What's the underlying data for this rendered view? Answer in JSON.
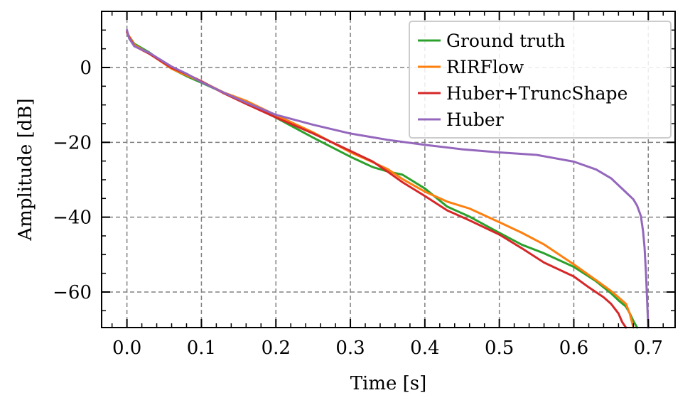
{
  "chart_data": {
    "type": "line",
    "title": "",
    "xlabel": "Time [s]",
    "ylabel": "Amplitude [dB]",
    "xlim": [
      -0.034,
      0.736
    ],
    "ylim": [
      -69.5,
      15
    ],
    "xticks": [
      0.0,
      0.1,
      0.2,
      0.3,
      0.4,
      0.5,
      0.6,
      0.7
    ],
    "xtick_labels": [
      "0.0",
      "0.1",
      "0.2",
      "0.3",
      "0.4",
      "0.5",
      "0.6",
      "0.7"
    ],
    "yticks": [
      0,
      -20,
      -40,
      -60
    ],
    "ytick_labels": [
      "0",
      "−20",
      "−40",
      "−60"
    ],
    "grid": true,
    "legend_position": "top-right",
    "series": [
      {
        "name": "Ground truth",
        "color": "#2ca02c",
        "x": [
          0.0,
          0.003,
          0.01,
          0.03,
          0.06,
          0.08,
          0.1,
          0.13,
          0.16,
          0.2,
          0.25,
          0.3,
          0.33,
          0.35,
          0.37,
          0.4,
          0.43,
          0.46,
          0.5,
          0.53,
          0.56,
          0.6,
          0.63,
          0.65,
          0.66,
          0.67,
          0.675,
          0.68,
          0.685
        ],
        "y": [
          9.5,
          8,
          6,
          4,
          0,
          -2,
          -4,
          -7,
          -9.5,
          -13.5,
          -18.5,
          -23.5,
          -26.5,
          -28,
          -29,
          -32.5,
          -37,
          -39.5,
          -44,
          -47.5,
          -50,
          -53.5,
          -57,
          -60,
          -62,
          -64,
          -66,
          -68,
          -69.5
        ]
      },
      {
        "name": "RIRFlow",
        "color": "#ff7f0e",
        "x": [
          0.0,
          0.003,
          0.01,
          0.03,
          0.06,
          0.08,
          0.1,
          0.13,
          0.16,
          0.2,
          0.25,
          0.3,
          0.33,
          0.35,
          0.37,
          0.4,
          0.43,
          0.46,
          0.5,
          0.53,
          0.56,
          0.6,
          0.63,
          0.65,
          0.66,
          0.67,
          0.675,
          0.68
        ],
        "y": [
          9.5,
          8,
          6,
          4,
          0,
          -2,
          -4,
          -7,
          -9,
          -12.5,
          -17,
          -22.5,
          -25.5,
          -27.5,
          -30,
          -33,
          -35.5,
          -37.5,
          -41.5,
          -44.5,
          -47.5,
          -52.5,
          -56.5,
          -59.5,
          -61.5,
          -63.5,
          -66,
          -69.5
        ]
      },
      {
        "name": "Huber+TruncShape",
        "color": "#d62728",
        "x": [
          0.0,
          0.003,
          0.01,
          0.03,
          0.06,
          0.08,
          0.1,
          0.13,
          0.16,
          0.2,
          0.25,
          0.3,
          0.33,
          0.35,
          0.37,
          0.4,
          0.43,
          0.46,
          0.5,
          0.53,
          0.56,
          0.6,
          0.62,
          0.64,
          0.65,
          0.66,
          0.665,
          0.67
        ],
        "y": [
          9.5,
          8,
          6,
          4,
          0,
          -2,
          -4,
          -7,
          -9.5,
          -13,
          -17.5,
          -22.5,
          -25.5,
          -28,
          -30.5,
          -34,
          -38,
          -41,
          -45,
          -48.5,
          -52,
          -55.5,
          -58.5,
          -61.5,
          -63.5,
          -66,
          -68,
          -69.5
        ]
      },
      {
        "name": "Huber",
        "color": "#9467bd",
        "x": [
          0.0,
          0.003,
          0.01,
          0.03,
          0.06,
          0.08,
          0.1,
          0.13,
          0.16,
          0.2,
          0.25,
          0.3,
          0.35,
          0.4,
          0.45,
          0.5,
          0.55,
          0.6,
          0.63,
          0.65,
          0.67,
          0.68,
          0.685,
          0.69,
          0.693,
          0.695,
          0.697,
          0.698,
          0.699,
          0.7
        ],
        "y": [
          10,
          8,
          6,
          4,
          0,
          -2,
          -4,
          -6.5,
          -9,
          -12.5,
          -15.5,
          -18,
          -19.5,
          -20.5,
          -21.5,
          -22.5,
          -23.5,
          -25.5,
          -27.5,
          -29.5,
          -33,
          -35,
          -37,
          -40,
          -44,
          -48,
          -55,
          -60,
          -65,
          -69.5
        ]
      }
    ]
  }
}
